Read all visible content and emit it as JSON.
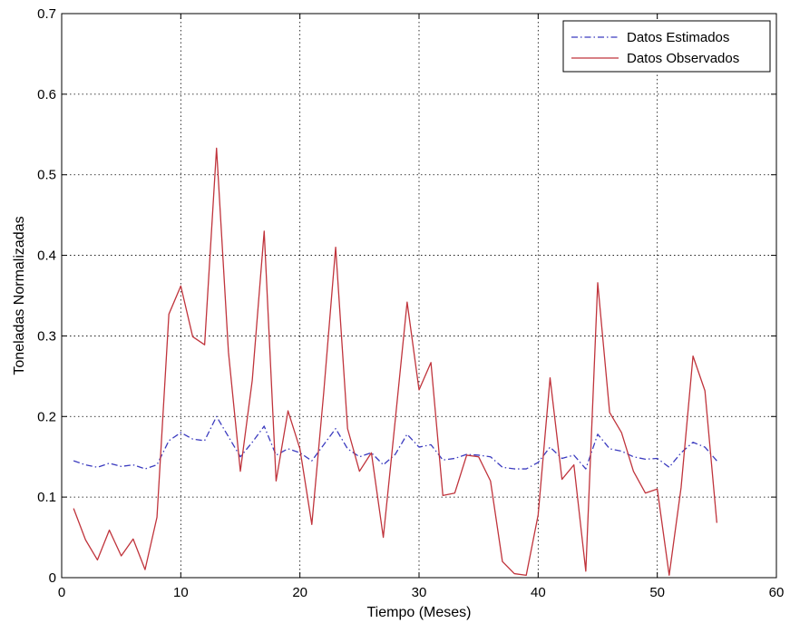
{
  "chart_data": {
    "type": "line",
    "title": "",
    "xlabel": "Tiempo (Meses)",
    "ylabel": "Toneladas Normalizadas",
    "xlim": [
      0,
      60
    ],
    "ylim": [
      0,
      0.7
    ],
    "xticks": [
      0,
      10,
      20,
      30,
      40,
      50,
      60
    ],
    "yticks": [
      0,
      0.1,
      0.2,
      0.3,
      0.4,
      0.5,
      0.6,
      0.7
    ],
    "xtick_labels": [
      "0",
      "10",
      "20",
      "30",
      "40",
      "50",
      "60"
    ],
    "ytick_labels": [
      "0",
      "0.1",
      "0.2",
      "0.3",
      "0.4",
      "0.5",
      "0.6",
      "0.7"
    ],
    "grid": true,
    "legend_position": "top-right",
    "x": [
      1,
      2,
      3,
      4,
      5,
      6,
      7,
      8,
      9,
      10,
      11,
      12,
      13,
      14,
      15,
      16,
      17,
      18,
      19,
      20,
      21,
      22,
      23,
      24,
      25,
      26,
      27,
      28,
      29,
      30,
      31,
      32,
      33,
      34,
      35,
      36,
      37,
      38,
      39,
      40,
      41,
      42,
      43,
      44,
      45,
      46,
      47,
      48,
      49,
      50,
      51,
      52,
      53,
      54,
      55
    ],
    "series": [
      {
        "name": "Datos Estimados",
        "color": "#3b3bbf",
        "style": "dash-dot",
        "values": [
          0.145,
          0.14,
          0.137,
          0.142,
          0.138,
          0.14,
          0.135,
          0.14,
          0.17,
          0.18,
          0.172,
          0.17,
          0.2,
          0.175,
          0.15,
          0.168,
          0.188,
          0.152,
          0.16,
          0.155,
          0.145,
          0.165,
          0.185,
          0.16,
          0.15,
          0.155,
          0.14,
          0.153,
          0.178,
          0.162,
          0.165,
          0.146,
          0.148,
          0.153,
          0.152,
          0.15,
          0.137,
          0.135,
          0.135,
          0.143,
          0.162,
          0.148,
          0.152,
          0.135,
          0.178,
          0.16,
          0.157,
          0.15,
          0.147,
          0.148,
          0.137,
          0.155,
          0.168,
          0.162,
          0.145
        ]
      },
      {
        "name": "Datos Observados",
        "color": "#c0343c",
        "style": "solid",
        "values": [
          0.086,
          0.047,
          0.022,
          0.059,
          0.027,
          0.048,
          0.01,
          0.075,
          0.327,
          0.362,
          0.299,
          0.289,
          0.533,
          0.28,
          0.132,
          0.245,
          0.43,
          0.12,
          0.207,
          0.16,
          0.066,
          0.23,
          0.41,
          0.185,
          0.132,
          0.155,
          0.05,
          0.195,
          0.342,
          0.233,
          0.267,
          0.102,
          0.105,
          0.152,
          0.15,
          0.12,
          0.02,
          0.005,
          0.003,
          0.078,
          0.248,
          0.122,
          0.14,
          0.008,
          0.366,
          0.205,
          0.18,
          0.132,
          0.105,
          0.11,
          0.003,
          0.112,
          0.275,
          0.232,
          0.068
        ]
      }
    ]
  }
}
